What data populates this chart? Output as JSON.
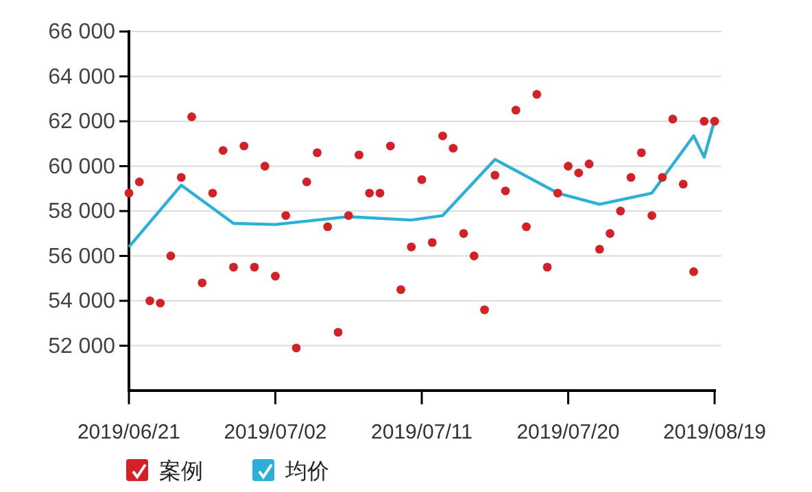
{
  "chart_data": {
    "type": "scatter",
    "categories": [
      "2019/06/21",
      null,
      null,
      null,
      null,
      null,
      null,
      null,
      null,
      null,
      null,
      null,
      null,
      null,
      "2019/07/02",
      null,
      null,
      null,
      null,
      null,
      null,
      null,
      null,
      null,
      null,
      null,
      null,
      null,
      "2019/07/11",
      null,
      null,
      null,
      null,
      null,
      null,
      null,
      null,
      null,
      null,
      null,
      null,
      null,
      "2019/07/20",
      null,
      null,
      null,
      null,
      null,
      null,
      null,
      null,
      null,
      null,
      null,
      null,
      null,
      "2019/08/19"
    ],
    "series": [
      {
        "name": "案例",
        "marker": "circle",
        "color": "#d42027",
        "values": [
          58800,
          59300,
          54000,
          53900,
          56000,
          59500,
          62200,
          54800,
          58800,
          60700,
          55500,
          60900,
          55500,
          60000,
          55100,
          57800,
          51900,
          59300,
          60600,
          57300,
          52600,
          57800,
          60500,
          58800,
          58800,
          60900,
          54500,
          56400,
          59400,
          56600,
          61350,
          60800,
          57000,
          56000,
          53600,
          59600,
          58900,
          62500,
          57300,
          63200,
          55500,
          58800,
          60000,
          59700,
          60100,
          56300,
          57000,
          58000,
          59500,
          60600,
          57800,
          59500,
          62100,
          59200,
          55300,
          62000,
          62000
        ]
      },
      {
        "name": "均价",
        "type": "line",
        "color": "#2bb0d8",
        "values": [
          56400,
          null,
          null,
          null,
          null,
          59150,
          null,
          null,
          null,
          null,
          57450,
          null,
          null,
          null,
          57400,
          null,
          null,
          null,
          null,
          null,
          null,
          57750,
          null,
          null,
          null,
          null,
          null,
          57600,
          null,
          null,
          57800,
          null,
          null,
          null,
          null,
          60300,
          null,
          null,
          null,
          null,
          null,
          58800,
          null,
          null,
          null,
          58300,
          null,
          null,
          null,
          null,
          58800,
          null,
          null,
          null,
          61350,
          60400,
          62050
        ]
      }
    ],
    "ylim": [
      50000,
      66000
    ],
    "yticks": [
      {
        "value": 52000,
        "label": "52 000"
      },
      {
        "value": 54000,
        "label": "54 000"
      },
      {
        "value": 56000,
        "label": "56 000"
      },
      {
        "value": 58000,
        "label": "58 000"
      },
      {
        "value": 60000,
        "label": "60 000"
      },
      {
        "value": 62000,
        "label": "62 000"
      },
      {
        "value": 64000,
        "label": "64 000"
      },
      {
        "value": 66000,
        "label": "66 000"
      }
    ],
    "grid": "y",
    "legend": "bottom"
  }
}
